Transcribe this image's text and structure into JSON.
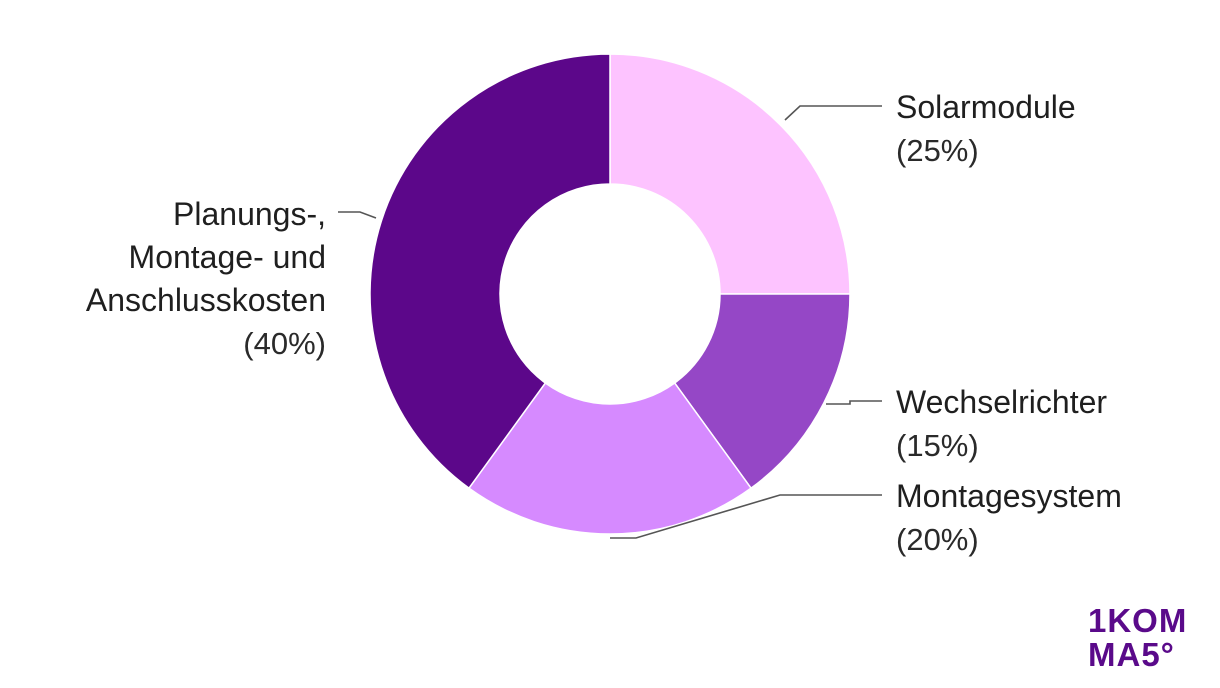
{
  "chart_data": {
    "type": "pie",
    "donut": true,
    "start_angle_deg": 0,
    "direction": "clockwise",
    "slices": [
      {
        "name": "Solarmodule",
        "label_lines": [
          "Solarmodule"
        ],
        "value": 25,
        "pct_label": "(25%)",
        "color": "#fdc3ff"
      },
      {
        "name": "Wechselrichter",
        "label_lines": [
          "Wechselrichter"
        ],
        "value": 15,
        "pct_label": "(15%)",
        "color": "#9547c6"
      },
      {
        "name": "Montagesystem",
        "label_lines": [
          "Montagesystem"
        ],
        "value": 20,
        "pct_label": "(20%)",
        "color": "#d68aff"
      },
      {
        "name": "Planungs-, Montage- und Anschlusskosten",
        "label_lines": [
          "Planungs-,",
          "Montage- und",
          "Anschlusskosten"
        ],
        "value": 40,
        "pct_label": "(40%)",
        "color": "#5c078a"
      }
    ],
    "legend": "none"
  },
  "logo": {
    "line1": "1KOM",
    "line2": "MA5°",
    "color": "#5a0a8a"
  }
}
